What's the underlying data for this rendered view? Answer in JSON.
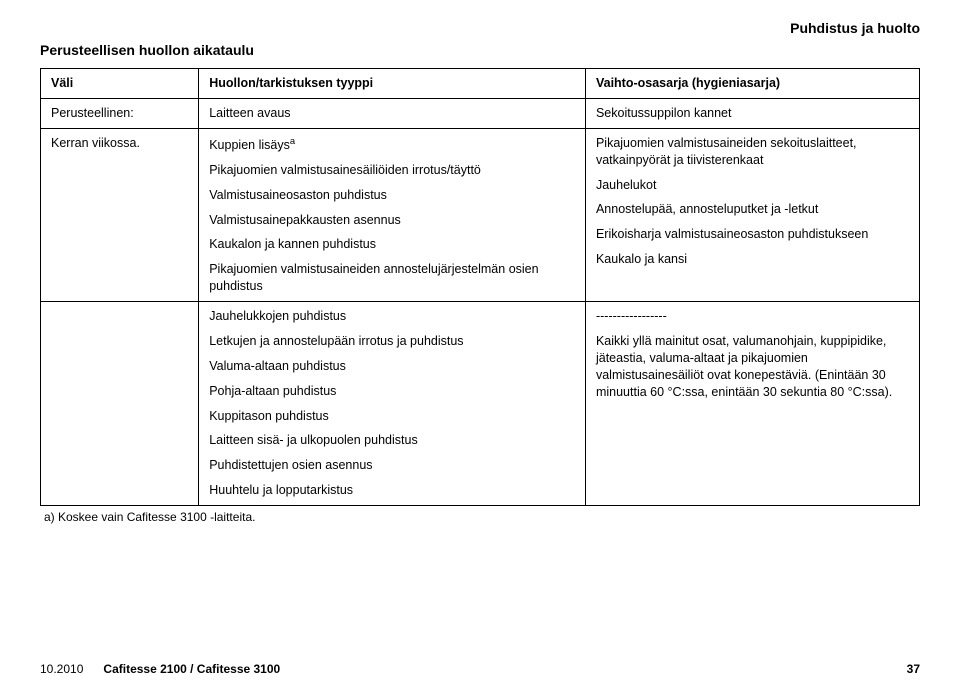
{
  "header_right": "Puhdistus ja huolto",
  "section_title": "Perusteellisen huollon aikataulu",
  "table": {
    "headers": [
      "Väli",
      "Huollon/tarkistuksen tyyppi",
      "Vaihto-osasarja (hygieniasarja)"
    ],
    "row1": {
      "c1": "Perusteellinen:",
      "c2": "Laitteen avaus",
      "c3": "Sekoitussuppilon kannet"
    },
    "row2": {
      "c1": "Kerran viikossa.",
      "c2_lines": [
        "Kuppien lisäys",
        "Pikajuomien valmistusainesäiliöiden irrotus/täyttö",
        "Valmistusaineosaston puhdistus",
        "Valmistusainepakkausten asennus",
        "Kaukalon ja kannen puhdistus",
        "Pikajuomien valmistusaineiden annostelujärjestelmän osien puhdistus"
      ],
      "c2_sup": "a",
      "c3_lines": [
        "Pikajuomien valmistusaineiden sekoituslaitteet, vatkainpyörät ja tiivisterenkaat",
        "Jauhelukot",
        "Annostelupää, annosteluputket ja -letkut",
        "Erikoisharja valmistusaineosaston puhdistukseen",
        "Kaukalo ja kansi"
      ]
    },
    "row3": {
      "c2_lines": [
        "Jauhelukkojen puhdistus",
        "Letkujen ja annostelupään irrotus ja puhdistus",
        "Valuma-altaan puhdistus",
        "Pohja-altaan puhdistus",
        "Kuppitason puhdistus",
        "Laitteen sisä- ja ulkopuolen puhdistus",
        "Puhdistettujen osien asennus",
        "Huuhtelu ja lopputarkistus"
      ],
      "c3_dashes": "-----------------",
      "c3_text": "Kaikki yllä mainitut osat, valumanohjain, kuppipidike, jäteastia, valuma-altaat ja pikajuomien valmistusainesäiliöt ovat konepestäviä. (Enintään 30 minuuttia 60 °C:ssa, enintään 30 sekuntia 80 °C:ssa)."
    }
  },
  "footnote": "a)  Koskee vain Cafitesse 3100 -laitteita.",
  "footer": {
    "date": "10.2010",
    "product": "Cafitesse 2100 / Cafitesse 3100",
    "page": "37"
  }
}
